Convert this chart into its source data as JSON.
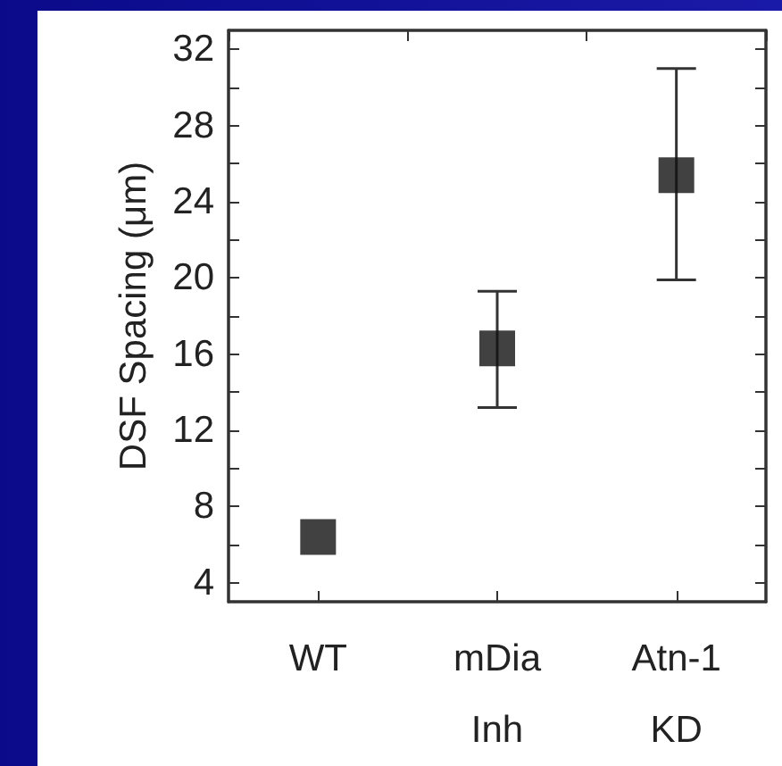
{
  "chart_data": {
    "type": "scatter",
    "ylabel": "DSF Spacing (μm)",
    "categories": [
      "WT",
      "mDia\nInh",
      "Atn-1\nKD"
    ],
    "values": [
      6.4,
      16.3,
      25.4
    ],
    "errors": [
      null,
      [
        13.2,
        19.3
      ],
      [
        19.9,
        31.0
      ]
    ],
    "color": "#111111",
    "marker": "square",
    "ylim": [
      3,
      33
    ],
    "yticks": [
      4,
      {
        "value": 6,
        "label": null
      },
      8,
      {
        "value": 10,
        "label": null
      },
      12,
      {
        "value": 14,
        "label": null
      },
      16,
      {
        "value": 18,
        "label": null
      },
      20,
      {
        "value": 22,
        "label": null
      },
      24,
      {
        "value": 26,
        "label": null
      },
      28,
      {
        "value": 30,
        "label": null
      },
      32
    ],
    "grid": false
  }
}
